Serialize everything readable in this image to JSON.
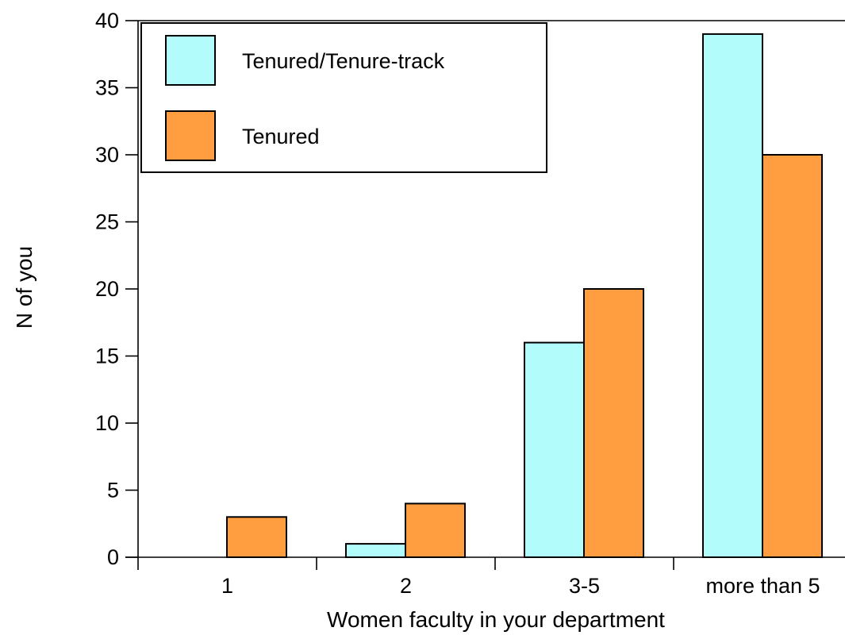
{
  "chart_data": {
    "type": "bar",
    "title": "",
    "xlabel": "Women faculty in your department",
    "ylabel": "N of you",
    "categories": [
      "1",
      "2",
      "3-5",
      "more than 5"
    ],
    "series": [
      {
        "name": "Tenured/Tenure-track",
        "values": [
          0,
          1,
          16,
          39
        ],
        "color": "#b3fcfc"
      },
      {
        "name": "Tenured",
        "values": [
          3,
          4,
          20,
          30
        ],
        "color": "#ff9e40"
      }
    ],
    "ylim": [
      0,
      40
    ],
    "yticks": [
      0,
      5,
      10,
      15,
      20,
      25,
      30,
      35,
      40
    ],
    "grid": false,
    "legend_position": "top-left"
  }
}
